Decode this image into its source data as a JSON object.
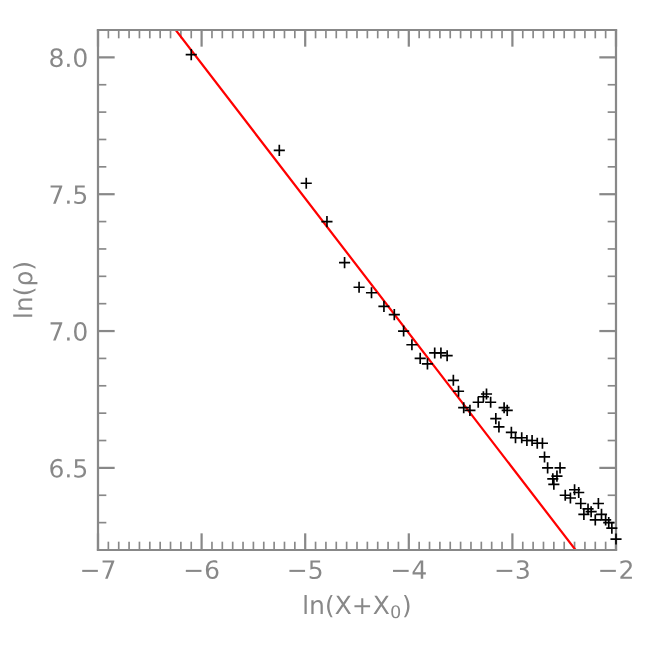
{
  "chart_data": {
    "type": "scatter",
    "xlabel": "ln(X+X$_{0}$)",
    "ylabel": "ln(ρ)",
    "xlim": [
      -7,
      -2
    ],
    "ylim": [
      6.2,
      8.1
    ],
    "xticks": [
      -7,
      -6,
      -5,
      -4,
      -3,
      -2
    ],
    "yticks": [
      {
        "value": 6.5,
        "label": "6.5"
      },
      {
        "value": 7,
        "label": "7.0"
      },
      {
        "value": 7.5,
        "label": "7.5"
      },
      {
        "value": 8,
        "label": "8.0"
      }
    ],
    "grid": false,
    "series": [
      {
        "marker": "cross",
        "color": "#000000",
        "x": [
          -6.1,
          -5.25,
          -4.99,
          -4.79,
          -4.62,
          -4.48,
          -4.36,
          -4.24,
          -4.14,
          -4.05,
          -3.97,
          -3.89,
          -3.82,
          -3.75,
          -3.69,
          -3.63,
          -3.57,
          -3.52,
          -3.47,
          -3.41,
          -3.33,
          -3.28,
          -3.25,
          -3.21,
          -3.16,
          -3.13,
          -3.08,
          -3.05,
          -3.01,
          -2.97,
          -2.91,
          -2.86,
          -2.81,
          -2.76,
          -2.71,
          -2.69,
          -2.66,
          -2.61,
          -2.57,
          -2.54,
          -2.6,
          -2.49,
          -2.44,
          -2.4,
          -2.36,
          -2.34,
          -2.31,
          -2.27,
          -2.24,
          -2.2,
          -2.17,
          -2.14,
          -2.1,
          -2.07,
          -2.04,
          -2.0
        ],
        "values": [
          8.01,
          7.66,
          7.54,
          7.4,
          7.25,
          7.16,
          7.14,
          7.09,
          7.06,
          7.0,
          6.95,
          6.9,
          6.88,
          6.92,
          6.92,
          6.91,
          6.82,
          6.78,
          6.72,
          6.71,
          6.74,
          6.76,
          6.77,
          6.74,
          6.68,
          6.65,
          6.72,
          6.71,
          6.63,
          6.61,
          6.61,
          6.6,
          6.6,
          6.59,
          6.59,
          6.54,
          6.5,
          6.46,
          6.47,
          6.5,
          6.44,
          6.4,
          6.39,
          6.42,
          6.41,
          6.37,
          6.33,
          6.35,
          6.34,
          6.31,
          6.37,
          6.33,
          6.31,
          6.3,
          6.28,
          6.24
        ]
      },
      {
        "type": "line",
        "marker": "none",
        "line_style": "solid",
        "color": "#ff0000",
        "x": [
          -6.25,
          -2.39
        ],
        "values": [
          8.1,
          6.2
        ]
      }
    ]
  }
}
